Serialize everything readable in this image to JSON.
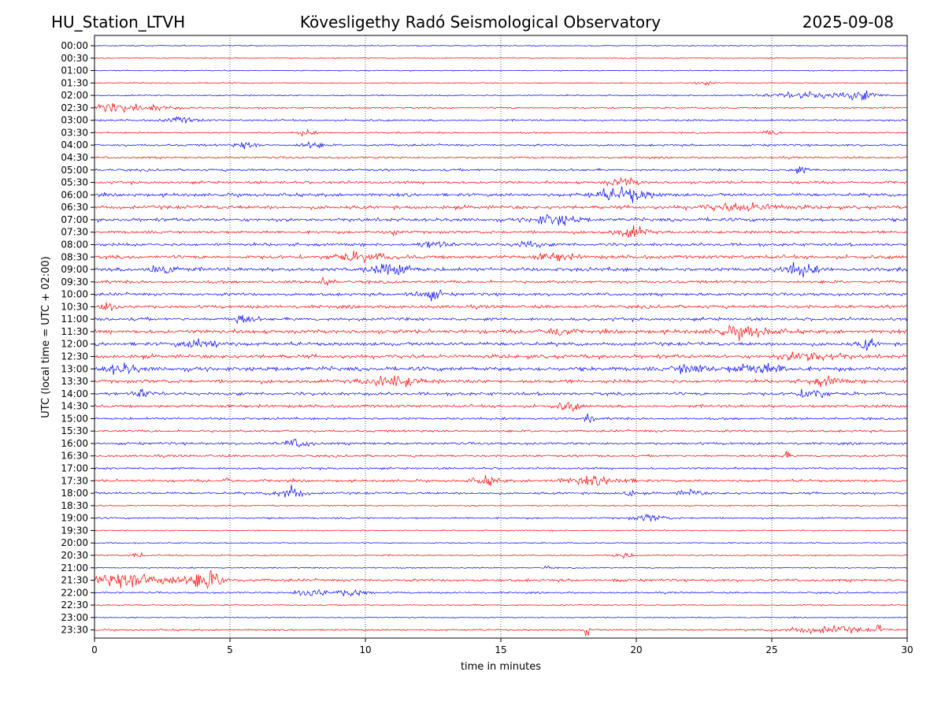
{
  "chart_data": {
    "type": "line",
    "title_left": "HU_Station_LTVH",
    "title_center": "Kövesligethy Radó Seismological Observatory",
    "title_right": "2025-09-08",
    "xlabel": "time in minutes",
    "ylabel": "UTC (local time = UTC + 02:00)",
    "xlim": [
      0,
      30
    ],
    "x_ticks": [
      "0",
      "5",
      "10",
      "15",
      "20",
      "25",
      "30"
    ],
    "x_gridlines": [
      5,
      10,
      15,
      20,
      25
    ],
    "grid_style": "dotted vertical",
    "colors": {
      "even_rows": "#0000ff",
      "odd_rows": "#ff0000"
    },
    "rows": [
      {
        "label": "00:00",
        "activity": 0.1,
        "events": []
      },
      {
        "label": "00:30",
        "activity": 0.1,
        "events": []
      },
      {
        "label": "01:00",
        "activity": 0.08,
        "events": []
      },
      {
        "label": "01:30",
        "activity": 0.1,
        "events": [
          [
            22.5,
            0.3,
            4
          ]
        ]
      },
      {
        "label": "02:00",
        "activity": 0.2,
        "events": [
          [
            26.5,
            1.5,
            5
          ],
          [
            28.3,
            0.6,
            6
          ]
        ]
      },
      {
        "label": "02:30",
        "activity": 0.3,
        "events": [
          [
            0.5,
            0.8,
            6
          ],
          [
            2.0,
            1.0,
            4
          ]
        ]
      },
      {
        "label": "03:00",
        "activity": 0.35,
        "events": [
          [
            3.2,
            0.6,
            4
          ]
        ]
      },
      {
        "label": "03:30",
        "activity": 0.25,
        "events": [
          [
            7.8,
            0.3,
            4
          ],
          [
            25.0,
            0.3,
            3
          ]
        ]
      },
      {
        "label": "04:00",
        "activity": 0.45,
        "events": [
          [
            5.6,
            0.4,
            5
          ],
          [
            8.0,
            0.4,
            5
          ]
        ]
      },
      {
        "label": "04:30",
        "activity": 0.4,
        "events": []
      },
      {
        "label": "05:00",
        "activity": 0.5,
        "events": [
          [
            26.0,
            0.3,
            5
          ]
        ]
      },
      {
        "label": "05:30",
        "activity": 0.6,
        "events": [
          [
            19.5,
            0.6,
            6
          ]
        ]
      },
      {
        "label": "06:00",
        "activity": 0.8,
        "events": [
          [
            19.5,
            1.0,
            10
          ]
        ]
      },
      {
        "label": "06:30",
        "activity": 0.9,
        "events": [
          [
            24.0,
            1.5,
            5
          ]
        ]
      },
      {
        "label": "07:00",
        "activity": 0.85,
        "events": [
          [
            17.0,
            0.8,
            8
          ]
        ]
      },
      {
        "label": "07:30",
        "activity": 0.7,
        "events": [
          [
            19.8,
            0.6,
            8
          ],
          [
            11.0,
            0.2,
            5
          ]
        ]
      },
      {
        "label": "08:00",
        "activity": 0.75,
        "events": [
          [
            12.5,
            0.5,
            5
          ],
          [
            16.0,
            0.5,
            5
          ]
        ]
      },
      {
        "label": "08:30",
        "activity": 0.9,
        "events": [
          [
            9.8,
            1.0,
            6
          ],
          [
            17.0,
            0.6,
            6
          ]
        ]
      },
      {
        "label": "09:00",
        "activity": 1.0,
        "events": [
          [
            2.5,
            0.5,
            10
          ],
          [
            11.0,
            0.8,
            8
          ],
          [
            26.0,
            0.6,
            9
          ]
        ]
      },
      {
        "label": "09:30",
        "activity": 0.7,
        "events": [
          [
            8.5,
            0.3,
            5
          ]
        ]
      },
      {
        "label": "10:00",
        "activity": 0.7,
        "events": [
          [
            12.3,
            0.5,
            9
          ]
        ]
      },
      {
        "label": "10:30",
        "activity": 0.8,
        "events": [
          [
            0.5,
            0.5,
            7
          ]
        ]
      },
      {
        "label": "11:00",
        "activity": 0.75,
        "events": [
          [
            5.5,
            0.4,
            7
          ]
        ]
      },
      {
        "label": "11:30",
        "activity": 1.0,
        "events": [
          [
            17.0,
            0.5,
            7
          ],
          [
            24.0,
            1.0,
            8
          ]
        ]
      },
      {
        "label": "12:00",
        "activity": 0.9,
        "events": [
          [
            4.0,
            0.8,
            6
          ],
          [
            28.5,
            0.3,
            8
          ]
        ]
      },
      {
        "label": "12:30",
        "activity": 1.0,
        "events": [
          [
            26.5,
            1.0,
            8
          ]
        ]
      },
      {
        "label": "13:00",
        "activity": 1.1,
        "events": [
          [
            22.0,
            0.5,
            10
          ],
          [
            24.5,
            1.0,
            8
          ],
          [
            1.0,
            0.6,
            7
          ]
        ]
      },
      {
        "label": "13:30",
        "activity": 0.9,
        "events": [
          [
            11.0,
            1.0,
            8
          ],
          [
            27.0,
            0.6,
            6
          ]
        ]
      },
      {
        "label": "14:00",
        "activity": 0.8,
        "events": [
          [
            1.8,
            0.3,
            6
          ],
          [
            26.5,
            0.5,
            8
          ]
        ]
      },
      {
        "label": "14:30",
        "activity": 0.7,
        "events": [
          [
            17.5,
            0.4,
            7
          ]
        ]
      },
      {
        "label": "15:00",
        "activity": 0.5,
        "events": [
          [
            18.3,
            0.2,
            6
          ]
        ]
      },
      {
        "label": "15:30",
        "activity": 0.5,
        "events": []
      },
      {
        "label": "16:00",
        "activity": 0.55,
        "events": [
          [
            7.5,
            0.5,
            6
          ]
        ]
      },
      {
        "label": "16:30",
        "activity": 0.5,
        "events": [
          [
            25.5,
            0.2,
            5
          ]
        ]
      },
      {
        "label": "17:00",
        "activity": 0.4,
        "events": []
      },
      {
        "label": "17:30",
        "activity": 0.55,
        "events": [
          [
            5.0,
            0.2,
            6
          ],
          [
            14.5,
            0.5,
            6
          ],
          [
            18.5,
            1.2,
            6
          ]
        ]
      },
      {
        "label": "18:00",
        "activity": 0.5,
        "events": [
          [
            7.2,
            0.5,
            10
          ],
          [
            19.7,
            0.2,
            6
          ],
          [
            22.0,
            0.4,
            5
          ]
        ]
      },
      {
        "label": "18:30",
        "activity": 0.2,
        "events": []
      },
      {
        "label": "19:00",
        "activity": 0.3,
        "events": [
          [
            20.5,
            0.6,
            5
          ]
        ]
      },
      {
        "label": "19:30",
        "activity": 0.15,
        "events": []
      },
      {
        "label": "20:00",
        "activity": 0.12,
        "events": []
      },
      {
        "label": "20:30",
        "activity": 0.2,
        "events": [
          [
            1.6,
            0.2,
            5
          ],
          [
            19.5,
            0.4,
            4
          ]
        ]
      },
      {
        "label": "21:00",
        "activity": 0.15,
        "events": [
          [
            16.7,
            0.1,
            4
          ]
        ]
      },
      {
        "label": "21:30",
        "activity": 0.6,
        "events": [
          [
            1.5,
            1.6,
            12
          ],
          [
            4.2,
            0.7,
            12
          ],
          [
            19.2,
            0.1,
            7
          ]
        ]
      },
      {
        "label": "22:00",
        "activity": 0.3,
        "events": [
          [
            8.0,
            0.5,
            10
          ],
          [
            9.5,
            0.6,
            5
          ]
        ]
      },
      {
        "label": "22:30",
        "activity": 0.15,
        "events": []
      },
      {
        "label": "23:00",
        "activity": 0.1,
        "events": []
      },
      {
        "label": "23:30",
        "activity": 0.3,
        "events": [
          [
            18.2,
            0.1,
            14
          ],
          [
            29.0,
            0.1,
            13
          ],
          [
            27.0,
            1.5,
            5
          ]
        ]
      }
    ]
  }
}
